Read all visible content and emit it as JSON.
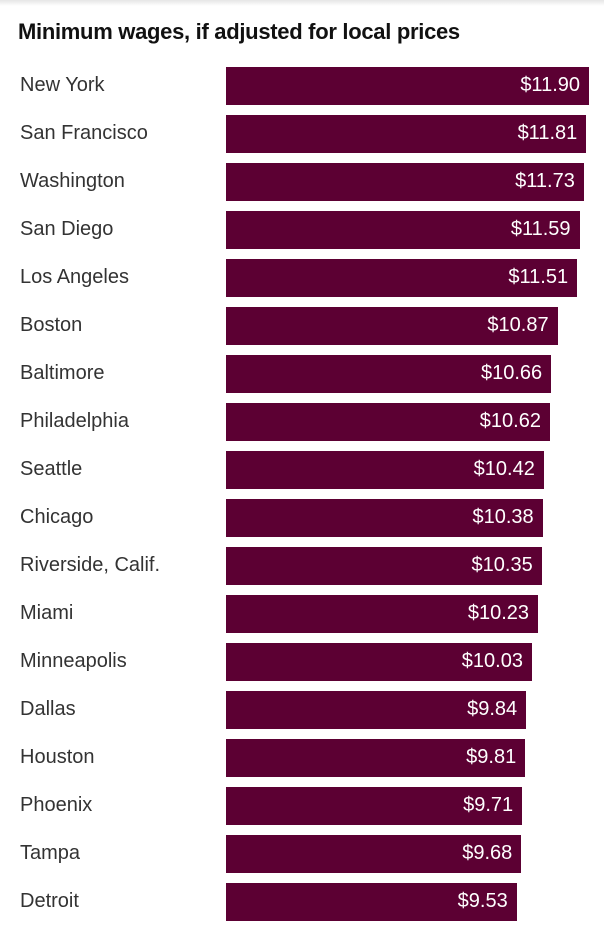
{
  "chart_data": {
    "type": "bar",
    "orientation": "horizontal",
    "title": "Minimum wages, if adjusted for local prices",
    "categories": [
      "New York",
      "San Francisco",
      "Washington",
      "San Diego",
      "Los Angeles",
      "Boston",
      "Baltimore",
      "Philadelphia",
      "Seattle",
      "Chicago",
      "Riverside, Calif.",
      "Miami",
      "Minneapolis",
      "Dallas",
      "Houston",
      "Phoenix",
      "Tampa",
      "Detroit"
    ],
    "values": [
      11.9,
      11.81,
      11.73,
      11.59,
      11.51,
      10.87,
      10.66,
      10.62,
      10.42,
      10.38,
      10.35,
      10.23,
      10.03,
      9.84,
      9.81,
      9.71,
      9.68,
      9.53
    ],
    "labels": [
      "$11.90",
      "$11.81",
      "$11.73",
      "$11.59",
      "$11.51",
      "$10.87",
      "$10.66",
      "$10.62",
      "$10.42",
      "$10.38",
      "$10.35",
      "$10.23",
      "$10.03",
      "$9.84",
      "$9.81",
      "$9.71",
      "$9.68",
      "$9.53"
    ],
    "xlim": [
      0,
      11.9
    ],
    "bar_color": "#5c0033",
    "label_color": "#ffffff",
    "grid": false
  }
}
